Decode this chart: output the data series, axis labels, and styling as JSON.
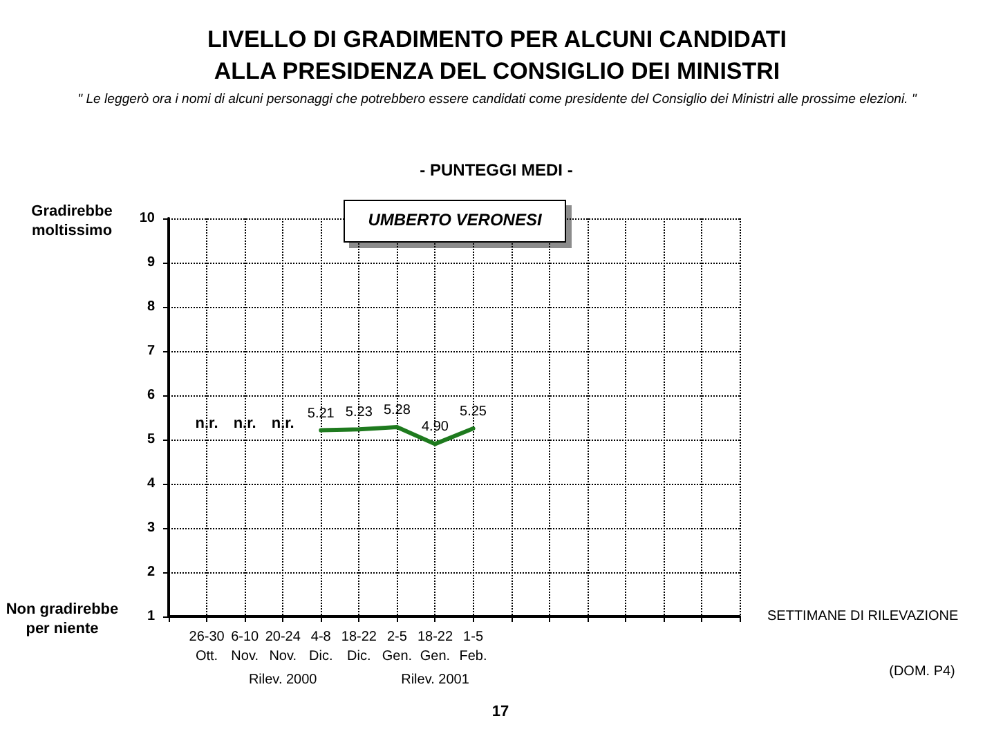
{
  "chart_data": {
    "type": "line",
    "title": "LIVELLO DI GRADIMENTO PER ALCUNI CANDIDATI\nALLA PRESIDENZA DEL CONSIGLIO DEI MINISTRI",
    "subtitle": "\" Le leggerò ora i nomi di alcuni personaggi che potrebbero essere candidati come presidente del Consiglio dei Ministri alle prossime elezioni. \"",
    "xlabel": "SETTIMANE DI RILEVAZIONE",
    "annotations": [
      "- PUNTEGGI MEDI -",
      "UMBERTO VERONESI",
      "Gradirebbe\nmoltissimo",
      "Non gradirebbe\nper niente",
      "Rilev. 2000",
      "Rilev. 2001",
      "(DOM. P4)",
      "17"
    ],
    "categories": [
      null,
      "26-30\nOtt.",
      "6-10\nNov.",
      "20-24\nNov.",
      "4-8\nDic.",
      "18-22\nDic.",
      "2-5\nGen.",
      "18-22\nGen.",
      "1-5\nFeb.",
      null,
      null,
      null,
      null,
      null,
      null,
      null
    ],
    "series": [
      {
        "color": "#1e7a1e",
        "values": [
          null,
          null,
          null,
          null,
          5.21,
          5.23,
          5.28,
          4.9,
          5.25,
          null,
          null,
          null,
          null,
          null,
          null,
          null
        ],
        "value_labels": [
          null,
          "n.r.",
          "n.r.",
          "n.r.",
          "5.21",
          "5.23",
          "5.28",
          "4.90",
          "5.25",
          null,
          null,
          null,
          null,
          null,
          null,
          null
        ]
      }
    ],
    "ylim": [
      1,
      10
    ],
    "yticks": [
      1,
      2,
      3,
      4,
      5,
      6,
      7,
      8,
      9,
      10
    ],
    "grid": true,
    "marker": "none",
    "line_style": "solid"
  }
}
